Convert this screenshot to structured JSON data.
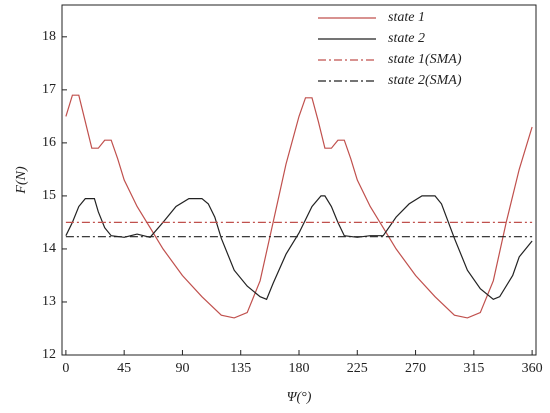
{
  "chart_data": {
    "type": "line",
    "x_label": "Ψ(°)",
    "y_label": "F(N)",
    "xlim": [
      -3,
      363
    ],
    "xticks": [
      0,
      45,
      90,
      135,
      180,
      225,
      270,
      315,
      360
    ],
    "ylim": [
      12,
      18.6
    ],
    "yticks": [
      12,
      13,
      14,
      15,
      16,
      17,
      18
    ],
    "legend": "upper right",
    "series": [
      {
        "name": "state 1",
        "color": "#c0504d",
        "dash": "solid",
        "x": [
          0,
          5,
          10,
          15,
          20,
          25,
          30,
          35,
          40,
          45,
          55,
          65,
          75,
          90,
          105,
          120,
          130,
          140,
          150,
          160,
          170,
          180,
          185,
          190,
          195,
          200,
          205,
          210,
          215,
          220,
          225,
          235,
          245,
          255,
          270,
          285,
          300,
          310,
          320,
          330,
          340,
          350,
          360
        ],
        "values": [
          16.5,
          16.9,
          16.9,
          16.4,
          15.9,
          15.9,
          16.05,
          16.05,
          15.7,
          15.3,
          14.8,
          14.4,
          14.0,
          13.5,
          13.1,
          12.75,
          12.7,
          12.8,
          13.4,
          14.5,
          15.6,
          16.5,
          16.85,
          16.85,
          16.4,
          15.9,
          15.9,
          16.05,
          16.05,
          15.7,
          15.3,
          14.8,
          14.4,
          14.0,
          13.5,
          13.1,
          12.75,
          12.7,
          12.8,
          13.4,
          14.5,
          15.5,
          16.3
        ]
      },
      {
        "name": "state 2",
        "color": "#222222",
        "dash": "solid",
        "x": [
          0,
          5,
          10,
          15,
          22,
          25,
          30,
          35,
          45,
          55,
          65,
          75,
          85,
          95,
          105,
          110,
          115,
          120,
          130,
          140,
          150,
          155,
          160,
          170,
          180,
          190,
          197,
          200,
          205,
          210,
          215,
          225,
          235,
          245,
          255,
          265,
          275,
          285,
          290,
          300,
          310,
          320,
          330,
          335,
          345,
          350,
          360
        ],
        "values": [
          14.25,
          14.5,
          14.8,
          14.95,
          14.95,
          14.7,
          14.4,
          14.25,
          14.22,
          14.28,
          14.22,
          14.5,
          14.8,
          14.95,
          14.95,
          14.85,
          14.6,
          14.2,
          13.6,
          13.3,
          13.1,
          13.05,
          13.35,
          13.9,
          14.3,
          14.8,
          15.0,
          15.0,
          14.8,
          14.5,
          14.25,
          14.22,
          14.25,
          14.25,
          14.6,
          14.85,
          15.0,
          15.0,
          14.85,
          14.2,
          13.6,
          13.25,
          13.05,
          13.1,
          13.5,
          13.85,
          14.15
        ]
      },
      {
        "name": "state 1(SMA)",
        "color": "#c0504d",
        "dash": "dashdot",
        "x": [
          0,
          360
        ],
        "values": [
          14.5,
          14.5
        ]
      },
      {
        "name": "state 2(SMA)",
        "color": "#222222",
        "dash": "dashdot",
        "x": [
          0,
          360
        ],
        "values": [
          14.23,
          14.23
        ]
      }
    ]
  }
}
